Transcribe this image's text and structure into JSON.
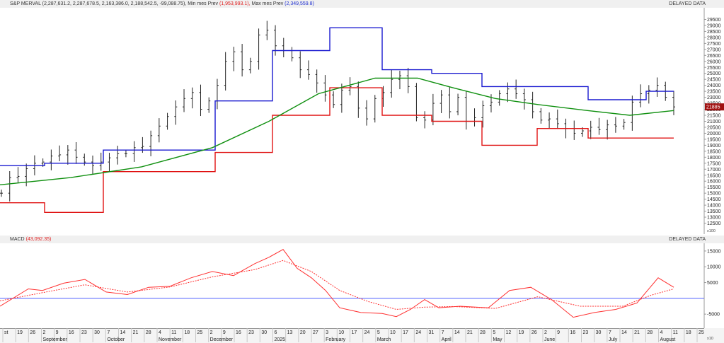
{
  "header": {
    "label": "S&P MERVAL",
    "ohlc": "(2,287,631.2, 2,287,678.5, 2,163,386.0, 2,188,542.5, -99,088.75),",
    "min_label": "Min mes Prev",
    "min_value": "(1,953,993.1),",
    "max_label": "Max mes Prev",
    "max_value": "(2,349,559.8)",
    "delayed": "DELAYED DATA"
  },
  "macd_header": {
    "label": "MACD",
    "value": "(43,092.35)",
    "delayed": "DELAYED DATA"
  },
  "colors": {
    "max_line": "#1a1ad0",
    "min_line": "#e01414",
    "ma_line": "#109010",
    "macd_line": "#ff3030",
    "signal_line": "#ff3030",
    "zero_line": "#5060ff",
    "last_price_tag": "#a01010"
  },
  "chart_data": [
    {
      "type": "line",
      "title": "S&P MERVAL",
      "y_scale_note": "x100",
      "ylim": [
        12000,
        30000
      ],
      "y_ticks": [
        12500,
        13000,
        13500,
        14000,
        14500,
        15000,
        15500,
        16000,
        16500,
        17000,
        17500,
        18000,
        18500,
        19000,
        19500,
        20000,
        20500,
        21000,
        21500,
        22000,
        22500,
        23000,
        23500,
        24000,
        24500,
        25000,
        25500,
        26000,
        26500,
        27000,
        27500,
        28000,
        28500,
        29000,
        29500
      ],
      "last_price_label": "21885",
      "price_series": [
        15000,
        16300,
        16400,
        17050,
        17500,
        17600,
        18100,
        18200,
        18600,
        18000,
        17600,
        17300,
        17600,
        17950,
        18300,
        18300,
        18800,
        18900,
        19800,
        20600,
        21400,
        22200,
        22900,
        23400,
        22000,
        22700,
        24000,
        26000,
        26800,
        25300,
        26000,
        28200,
        28600,
        27300,
        26900,
        26300,
        25300,
        24900,
        24200,
        23200,
        22400,
        23600,
        23900,
        22100,
        21200,
        22900,
        23400,
        24500,
        24800,
        23900,
        21300,
        21100,
        22500,
        23200,
        21800,
        23000,
        21000,
        21300,
        22300,
        22600,
        23300,
        23700,
        23300,
        22800,
        21800,
        21100,
        21200,
        20800,
        20400,
        20000,
        20200,
        20500,
        20300,
        20700,
        20600,
        20900,
        22600,
        23300,
        23600,
        24000,
        23000,
        22200
      ],
      "series": [
        {
          "name": "Max mes Prev",
          "x": [
            0,
            63,
            63,
            146,
            146,
            230,
            230,
            304,
            304,
            385,
            385,
            466,
            466,
            540,
            540,
            610,
            610,
            681,
            681,
            759,
            759,
            831,
            831,
            913,
            913,
            952
          ],
          "y": [
            17300,
            17300,
            17500,
            17500,
            18600,
            18600,
            18600,
            18600,
            22700,
            22700,
            26900,
            26900,
            28800,
            28800,
            25300,
            25300,
            25000,
            25000,
            23900,
            23900,
            23900,
            23900,
            22800,
            22800,
            23500,
            23500
          ]
        },
        {
          "name": "Min mes Prev",
          "x": [
            0,
            63,
            63,
            146,
            146,
            230,
            230,
            304,
            304,
            385,
            385,
            466,
            466,
            540,
            540,
            610,
            610,
            681,
            681,
            759,
            759,
            831,
            831,
            913,
            913,
            952
          ],
          "y": [
            14200,
            14200,
            13400,
            13400,
            16800,
            16800,
            16800,
            16800,
            18400,
            18400,
            21500,
            21500,
            23800,
            23800,
            21500,
            21500,
            21000,
            21000,
            19000,
            19000,
            20400,
            20400,
            19600,
            19600,
            19600,
            19600
          ]
        },
        {
          "name": "Moving average",
          "x": [
            0,
            100,
            200,
            300,
            380,
            450,
            530,
            590,
            640,
            700,
            760,
            830,
            890,
            952
          ],
          "y": [
            15700,
            16300,
            17200,
            18800,
            21000,
            23300,
            24600,
            24600,
            23800,
            22900,
            22400,
            21900,
            21500,
            21900
          ]
        }
      ]
    },
    {
      "type": "line",
      "title": "MACD",
      "ylim": [
        -9000,
        17000
      ],
      "y_ticks": [
        -5000,
        5000,
        10000,
        15000
      ],
      "series": [
        {
          "name": "MACD",
          "x": [
            0,
            40,
            60,
            90,
            120,
            150,
            180,
            210,
            240,
            270,
            300,
            330,
            360,
            380,
            400,
            420,
            440,
            460,
            480,
            510,
            540,
            560,
            580,
            600,
            620,
            650,
            690,
            720,
            750,
            780,
            810,
            840,
            870,
            900,
            930,
            952
          ],
          "y": [
            -2500,
            3000,
            2500,
            4800,
            6000,
            2000,
            1200,
            3500,
            3800,
            6500,
            8500,
            7200,
            11000,
            13000,
            15500,
            9500,
            6500,
            2500,
            -3000,
            -4500,
            -4800,
            -5800,
            -3500,
            -400,
            -3000,
            -2500,
            -3000,
            2500,
            3500,
            -500,
            -6000,
            -4500,
            -3500,
            -1500,
            6500,
            3500
          ]
        },
        {
          "name": "Signal",
          "x": [
            0,
            60,
            120,
            180,
            240,
            300,
            360,
            400,
            440,
            480,
            520,
            560,
            600,
            640,
            700,
            760,
            820,
            880,
            920,
            952
          ],
          "y": [
            -800,
            1800,
            4300,
            2000,
            3600,
            6800,
            9100,
            12000,
            8500,
            2500,
            -1000,
            -3500,
            -2800,
            -2600,
            -3200,
            500,
            -2500,
            -2500,
            1000,
            3000
          ]
        }
      ]
    }
  ],
  "x_axis": {
    "day_ticks": [
      "st",
      "19",
      "26",
      "2",
      "9",
      "16",
      "23",
      "30",
      "7",
      "14",
      "21",
      "28",
      "4",
      "11",
      "18",
      "25",
      "2",
      "9",
      "16",
      "23",
      "30",
      "6",
      "13",
      "20",
      "27",
      "3",
      "10",
      "17",
      "24",
      "5",
      "10",
      "17",
      "24",
      "31",
      "7",
      "14",
      "21",
      "28",
      "5",
      "12",
      "19",
      "26",
      "2",
      "9",
      "16",
      "23",
      "30",
      "7",
      "14",
      "21",
      "28",
      "4",
      "11",
      "18",
      "25"
    ],
    "months": [
      "September",
      "October",
      "November",
      "December",
      "2025",
      "February",
      "March",
      "April",
      "May",
      "June",
      "July",
      "August"
    ],
    "scale_note": "x10"
  }
}
